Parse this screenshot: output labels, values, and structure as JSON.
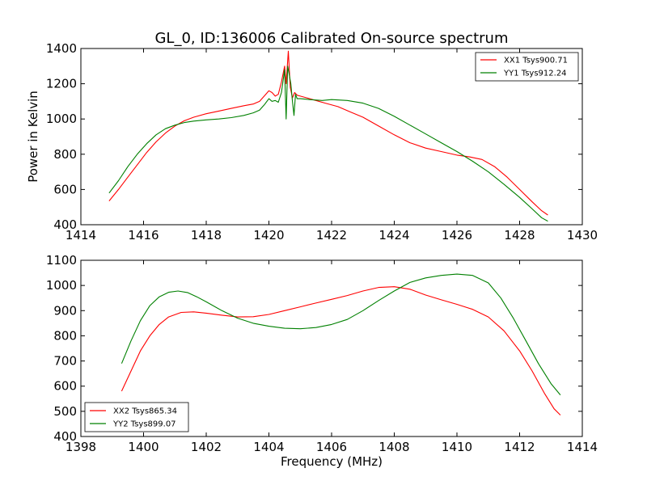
{
  "chart_data": [
    {
      "type": "line",
      "title": "GL_0, ID:136006 Calibrated On-source spectrum",
      "xlabel": "",
      "ylabel": "Power in Kelvin",
      "xlim": [
        1414,
        1430
      ],
      "ylim": [
        400,
        1400
      ],
      "xticks": [
        1414,
        1416,
        1418,
        1420,
        1422,
        1424,
        1426,
        1428,
        1430
      ],
      "yticks": [
        400,
        600,
        800,
        1000,
        1200,
        1400
      ],
      "grid": false,
      "legend_position": "upper right",
      "series": [
        {
          "name": "XX1 Tsys900.71",
          "color": "#ff0000",
          "x": [
            1414.9,
            1415.2,
            1415.5,
            1415.8,
            1416.1,
            1416.4,
            1416.7,
            1417.0,
            1417.3,
            1417.6,
            1418.0,
            1418.4,
            1418.8,
            1419.2,
            1419.5,
            1419.7,
            1419.85,
            1420.0,
            1420.1,
            1420.2,
            1420.3,
            1420.4,
            1420.5,
            1420.55,
            1420.62,
            1420.68,
            1420.75,
            1420.82,
            1420.9,
            1421.0,
            1421.2,
            1421.5,
            1421.8,
            1422.2,
            1422.6,
            1423.0,
            1423.5,
            1424.0,
            1424.5,
            1425.0,
            1425.5,
            1426.0,
            1426.4,
            1426.8,
            1427.2,
            1427.6,
            1428.0,
            1428.4,
            1428.7,
            1428.9
          ],
          "values": [
            535,
            600,
            670,
            740,
            810,
            870,
            920,
            960,
            990,
            1010,
            1030,
            1045,
            1060,
            1075,
            1085,
            1100,
            1130,
            1160,
            1150,
            1130,
            1140,
            1210,
            1300,
            1200,
            1385,
            1180,
            1120,
            1150,
            1135,
            1130,
            1120,
            1105,
            1090,
            1070,
            1040,
            1010,
            960,
            910,
            865,
            835,
            815,
            795,
            785,
            770,
            730,
            670,
            600,
            530,
            480,
            455
          ]
        },
        {
          "name": "YY1 Tsys912.24",
          "color": "#008000",
          "x": [
            1414.9,
            1415.2,
            1415.5,
            1415.8,
            1416.1,
            1416.4,
            1416.7,
            1417.0,
            1417.3,
            1417.6,
            1418.0,
            1418.4,
            1418.8,
            1419.2,
            1419.5,
            1419.7,
            1419.85,
            1420.0,
            1420.1,
            1420.2,
            1420.3,
            1420.4,
            1420.5,
            1420.55,
            1420.6,
            1420.65,
            1420.7,
            1420.75,
            1420.8,
            1420.85,
            1420.9,
            1421.0,
            1421.3,
            1421.7,
            1422.0,
            1422.5,
            1423.0,
            1423.5,
            1424.0,
            1424.5,
            1425.0,
            1425.5,
            1426.0,
            1426.5,
            1427.0,
            1427.5,
            1428.0,
            1428.4,
            1428.7,
            1428.9
          ],
          "values": [
            580,
            650,
            730,
            800,
            860,
            910,
            945,
            965,
            980,
            988,
            995,
            1000,
            1008,
            1020,
            1035,
            1050,
            1080,
            1115,
            1100,
            1105,
            1095,
            1150,
            1280,
            1000,
            1300,
            1250,
            1200,
            1100,
            1020,
            1140,
            1115,
            1115,
            1110,
            1105,
            1110,
            1105,
            1090,
            1060,
            1015,
            965,
            915,
            865,
            815,
            760,
            700,
            630,
            555,
            490,
            440,
            420
          ]
        }
      ]
    },
    {
      "type": "line",
      "title": "",
      "xlabel": "Frequency (MHz)",
      "ylabel": "",
      "xlim": [
        1398,
        1414
      ],
      "ylim": [
        400,
        1100
      ],
      "xticks": [
        1398,
        1400,
        1402,
        1404,
        1406,
        1408,
        1410,
        1412,
        1414
      ],
      "yticks": [
        400,
        500,
        600,
        700,
        800,
        900,
        1000,
        1100
      ],
      "grid": false,
      "legend_position": "lower left",
      "series": [
        {
          "name": "XX2 Tsys865.34",
          "color": "#ff0000",
          "x": [
            1399.3,
            1399.6,
            1399.9,
            1400.2,
            1400.5,
            1400.8,
            1401.2,
            1401.6,
            1402.0,
            1402.5,
            1403.0,
            1403.5,
            1404.0,
            1404.5,
            1405.0,
            1405.5,
            1406.0,
            1406.5,
            1407.0,
            1407.5,
            1408.0,
            1408.5,
            1409.0,
            1409.5,
            1410.0,
            1410.5,
            1411.0,
            1411.5,
            1412.0,
            1412.4,
            1412.8,
            1413.1,
            1413.3
          ],
          "values": [
            580,
            660,
            740,
            800,
            845,
            875,
            893,
            895,
            890,
            882,
            875,
            876,
            885,
            900,
            915,
            930,
            945,
            960,
            978,
            992,
            995,
            985,
            962,
            943,
            925,
            905,
            875,
            820,
            740,
            660,
            570,
            510,
            485
          ]
        },
        {
          "name": "YY2 Tsys899.07",
          "color": "#008000",
          "x": [
            1399.3,
            1399.6,
            1399.9,
            1400.2,
            1400.5,
            1400.8,
            1401.1,
            1401.4,
            1401.7,
            1402.0,
            1402.5,
            1403.0,
            1403.5,
            1404.0,
            1404.5,
            1405.0,
            1405.5,
            1406.0,
            1406.5,
            1407.0,
            1407.5,
            1408.0,
            1408.5,
            1409.0,
            1409.5,
            1410.0,
            1410.5,
            1411.0,
            1411.4,
            1411.8,
            1412.2,
            1412.6,
            1413.0,
            1413.3
          ],
          "values": [
            690,
            780,
            860,
            920,
            955,
            973,
            978,
            972,
            955,
            935,
            900,
            870,
            850,
            838,
            830,
            828,
            833,
            845,
            865,
            900,
            940,
            978,
            1012,
            1030,
            1040,
            1045,
            1040,
            1010,
            950,
            870,
            780,
            690,
            610,
            565
          ]
        }
      ]
    }
  ]
}
